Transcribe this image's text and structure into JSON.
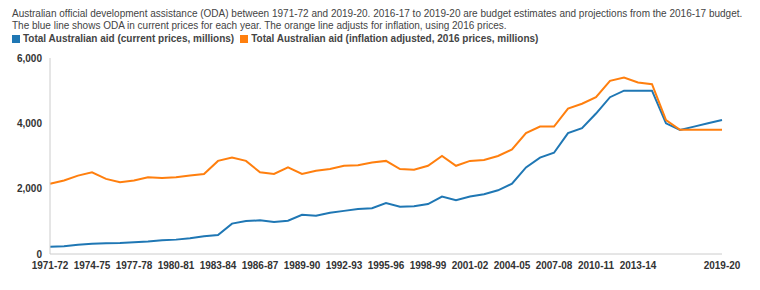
{
  "chart_data": {
    "type": "line",
    "title": "Australian official development assistance (ODA) between 1971-72 and 2019-20. 2016-17 to 2019-20 are budget estimates and projections from the 2016-17 budget. The blue line shows ODA in current prices for each year. The orange line adjusts for inflation, using 2016 prices.",
    "categories": [
      "1971-72",
      null,
      null,
      "1974-75",
      null,
      null,
      "1977-78",
      null,
      null,
      "1980-81",
      null,
      null,
      "1983-84",
      null,
      null,
      "1986-87",
      null,
      null,
      "1989-90",
      null,
      null,
      "1992-93",
      null,
      null,
      "1995-96",
      null,
      null,
      "1998-99",
      null,
      null,
      "2001-02",
      null,
      null,
      "2004-05",
      null,
      null,
      "2007-08",
      null,
      null,
      "2010-11",
      null,
      null,
      "2013-14",
      null,
      null,
      null,
      null,
      null,
      "2019-20"
    ],
    "series": [
      {
        "name": "Total Australian aid (current prices, millions)",
        "color": "#1f77b4",
        "values": [
          220,
          240,
          280,
          310,
          330,
          340,
          360,
          380,
          420,
          440,
          480,
          540,
          580,
          930,
          1010,
          1030,
          980,
          1020,
          1200,
          1170,
          1260,
          1320,
          1380,
          1400,
          1560,
          1450,
          1460,
          1530,
          1760,
          1650,
          1760,
          1830,
          1950,
          2150,
          2650,
          2950,
          3100,
          3700,
          3850,
          4300,
          4800,
          5000,
          5000,
          5000,
          4000,
          3800,
          3900,
          4000,
          4100
        ]
      },
      {
        "name": "Total Australian aid (inflation adjusted, 2016 prices, millions)",
        "color": "#ff7f0e",
        "values": [
          2150,
          2250,
          2400,
          2500,
          2300,
          2200,
          2250,
          2350,
          2330,
          2350,
          2400,
          2450,
          2850,
          2950,
          2850,
          2500,
          2450,
          2650,
          2450,
          2550,
          2600,
          2700,
          2720,
          2800,
          2850,
          2600,
          2580,
          2700,
          3000,
          2700,
          2850,
          2880,
          3000,
          3200,
          3700,
          3900,
          3900,
          4450,
          4600,
          4800,
          5300,
          5400,
          5250,
          5200,
          4100,
          3800,
          3800,
          3800,
          3800
        ]
      }
    ],
    "ylim": [
      0,
      6000
    ],
    "yticks": [
      0,
      {
        "value": 2000,
        "label": "2,000"
      },
      {
        "value": 4000,
        "label": "4,000"
      },
      {
        "value": 6000,
        "label": "6,000"
      }
    ],
    "grid": false
  }
}
